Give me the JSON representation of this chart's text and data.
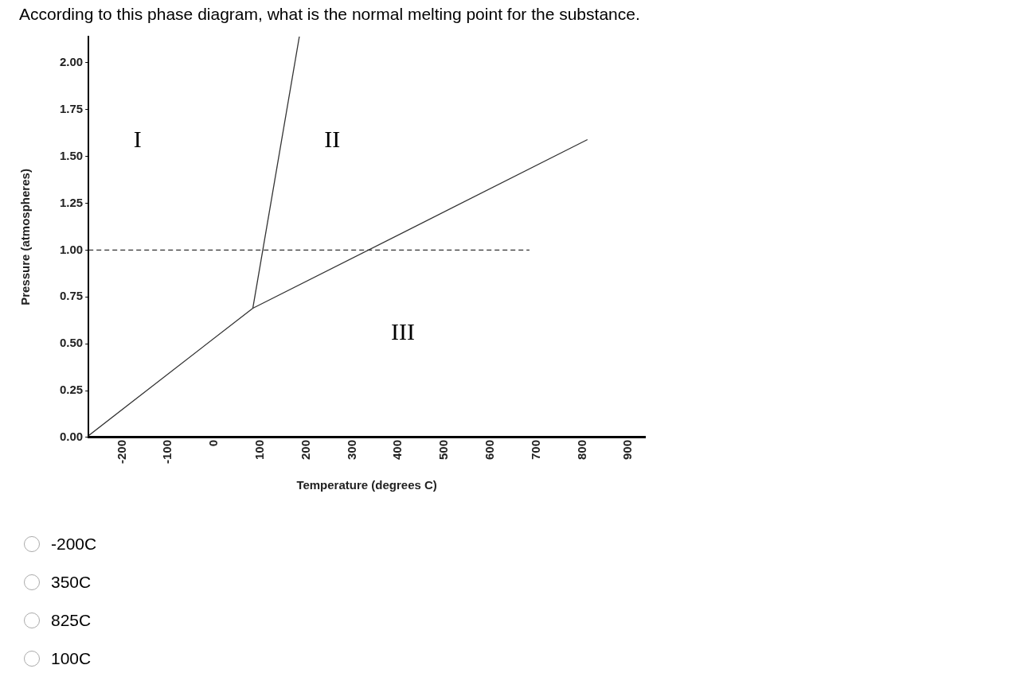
{
  "chart_data": {
    "type": "line",
    "title": "According to this phase diagram, what is the normal melting point for the substance.",
    "xlabel": "Temperature (degrees C)",
    "ylabel": "Pressure (atmospheres)",
    "series": [
      {
        "color": "#333333",
        "x": [
          -273,
          84,
          811
        ],
        "values": [
          0.01,
          0.69,
          1.59
        ]
      },
      {
        "color": "#333333",
        "x": [
          84,
          185
        ],
        "values": [
          0.69,
          2.14
        ]
      },
      {
        "color": "#333333",
        "x": [
          -273,
          685
        ],
        "values": [
          1.0,
          1.0
        ],
        "line_style": "dashed"
      }
    ],
    "xlim": [
      -273,
      936
    ],
    "xticks": [
      -200,
      -100,
      0,
      100,
      200,
      300,
      400,
      500,
      600,
      700,
      800,
      900
    ],
    "ylim": [
      0,
      2.14
    ],
    "yticks": [
      {
        "value": 0,
        "label": "0.00"
      },
      {
        "value": 0.25,
        "label": "0.25"
      },
      {
        "value": 0.5,
        "label": "0.50"
      },
      {
        "value": 0.75,
        "label": "0.75"
      },
      {
        "value": 1,
        "label": "1.00"
      },
      {
        "value": 1.25,
        "label": "1.25"
      },
      {
        "value": 1.5,
        "label": "1.50"
      },
      {
        "value": 1.75,
        "label": "1.75"
      },
      {
        "value": 2,
        "label": "2.00"
      }
    ],
    "grid": false,
    "legend": false,
    "marker": "none",
    "line_style": "solid",
    "annotations": [
      "I",
      "II",
      "III",
      "-200C",
      "350C",
      "825C",
      "100C"
    ]
  }
}
